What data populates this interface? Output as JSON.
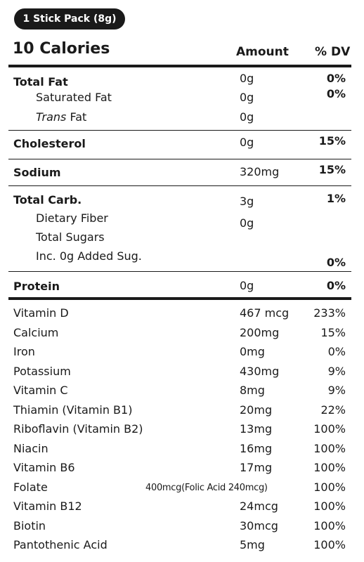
{
  "serving": "1 Stick Pack (8g)",
  "calories": "10 Calories",
  "headers": {
    "amount": "Amount",
    "dv": "% DV"
  },
  "total_fat": {
    "label": "Total Fat",
    "amount": "0g",
    "dv": "0%"
  },
  "saturated_fat": {
    "label": "Saturated Fat",
    "amount": "0g",
    "dv": "0%"
  },
  "trans_fat": {
    "label_italic": "Trans",
    "label_rest": " Fat",
    "amount": "0g"
  },
  "cholesterol": {
    "label": "Cholesterol",
    "amount": "0g",
    "dv": "15%"
  },
  "sodium": {
    "label": "Sodium",
    "amount": "320mg",
    "dv": "15%"
  },
  "total_carb": {
    "label": "Total  Carb.",
    "amount": "3g",
    "dv": "1%"
  },
  "dietary_fiber": {
    "label": "Dietary Fiber",
    "amount": "0g"
  },
  "total_sugars": {
    "label": "Total Sugars"
  },
  "added_sugars": {
    "label": "Inc. 0g Added Sug.",
    "dv": "0%"
  },
  "protein": {
    "label": "Protein",
    "amount": "0g",
    "dv": "0%"
  },
  "vitamins": [
    {
      "name": "Vitamin D",
      "amount": "467 mcg",
      "dv": "233%"
    },
    {
      "name": "Calcium",
      "amount": "200mg",
      "dv": "15%"
    },
    {
      "name": "Iron",
      "amount": "0mg",
      "dv": "0%"
    },
    {
      "name": "Potassium",
      "amount": "430mg",
      "dv": "9%"
    },
    {
      "name": "Vitamin C",
      "amount": "8mg",
      "dv": "9%"
    },
    {
      "name": "Thiamin (Vitamin B1)",
      "amount": "20mg",
      "dv": "22%"
    },
    {
      "name": "Riboflavin (Vitamin B2)",
      "amount": "13mg",
      "dv": "100%"
    },
    {
      "name": "Niacin",
      "amount": "16mg",
      "dv": "100%"
    },
    {
      "name": "Vitamin B6",
      "amount": "17mg",
      "dv": "100%"
    },
    {
      "name": "Folate",
      "amount": "400mcg(Folic Acid 240mcg)",
      "dv": "100%"
    },
    {
      "name": "Vitamin B12",
      "amount": "24mcg",
      "dv": "100%"
    },
    {
      "name": "Biotin",
      "amount": "30mcg",
      "dv": "100%"
    },
    {
      "name": "Pantothenic Acid",
      "amount": "5mg",
      "dv": "100%"
    }
  ]
}
